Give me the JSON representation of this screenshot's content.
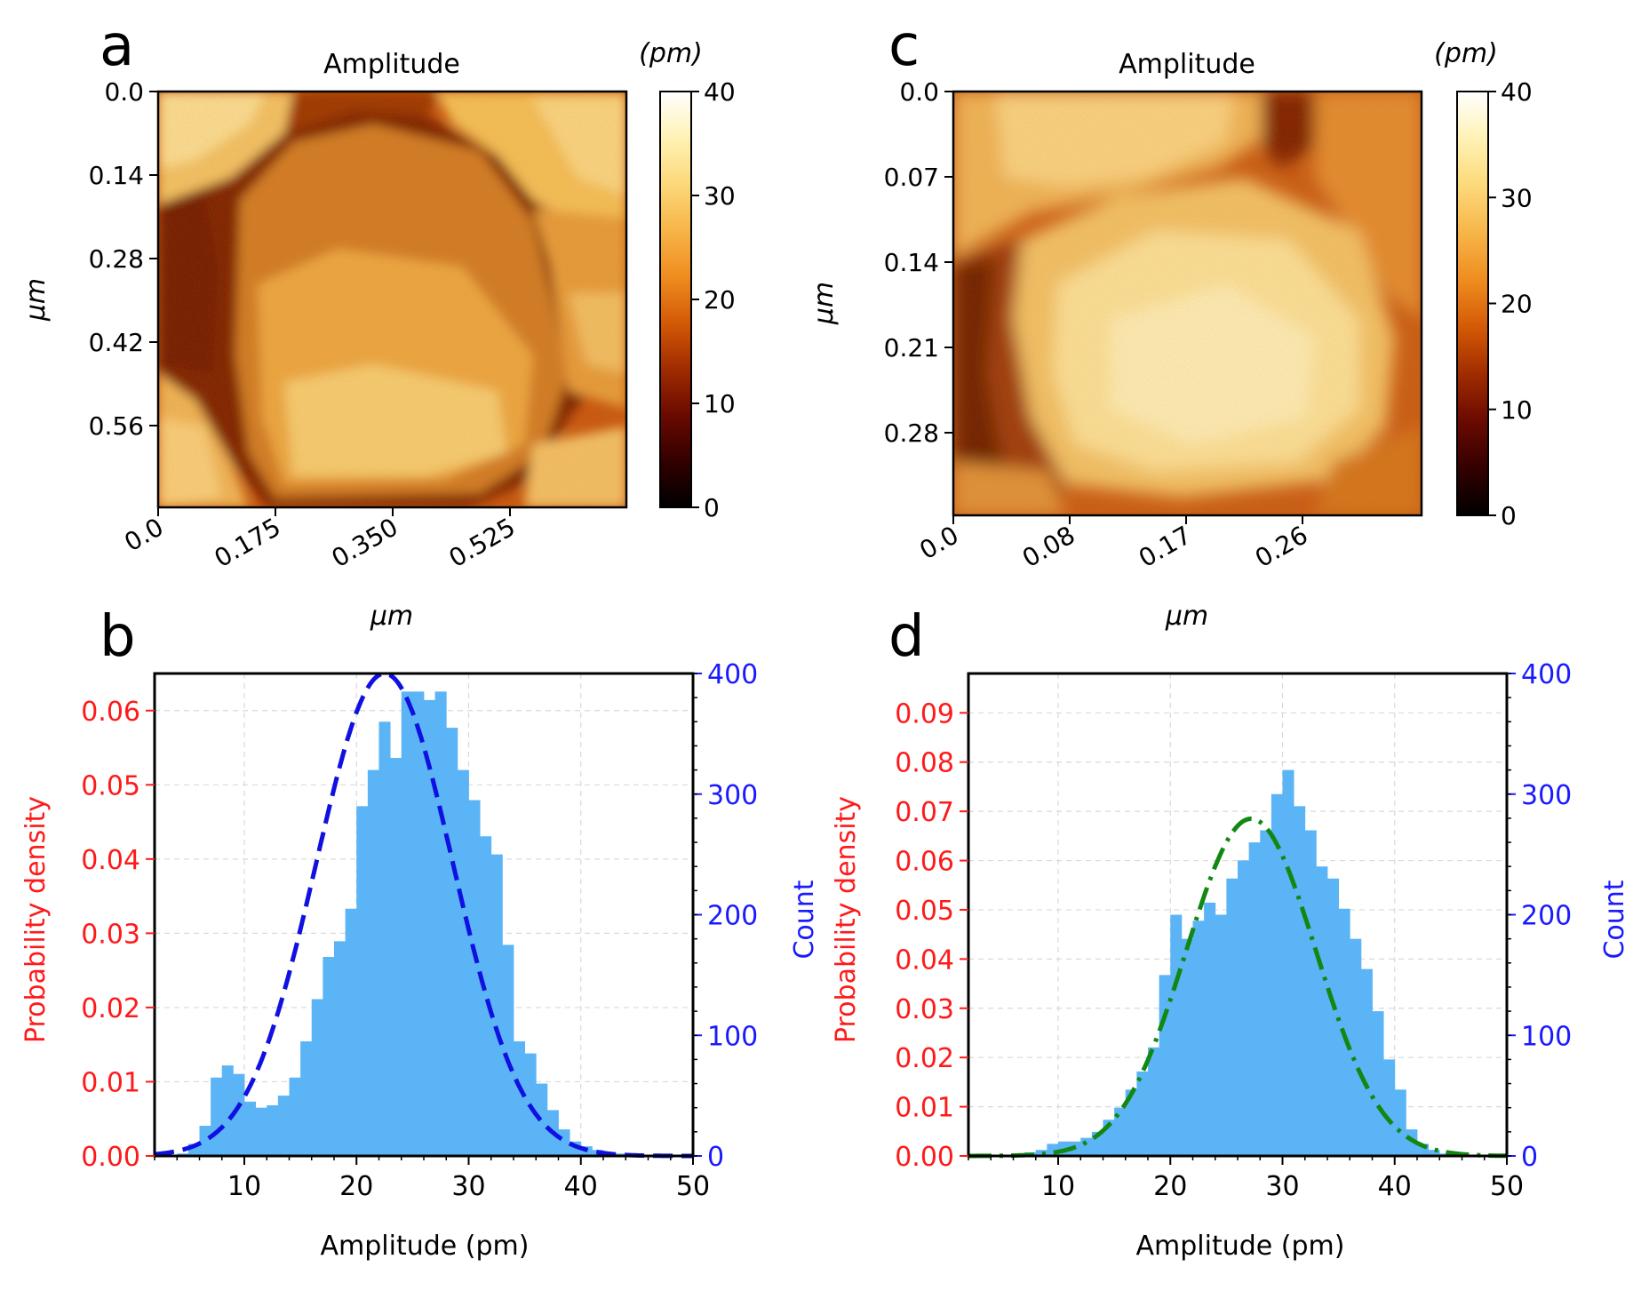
{
  "colors": {
    "hist_fill": "#5bb4f5",
    "fit_b": "#1010e0",
    "fit_d": "#118811",
    "left_axis": "#ff1a1a",
    "right_axis": "#1a1aff",
    "grid": "#d9d9d9",
    "colormap": [
      "#000000",
      "#330000",
      "#6a0a00",
      "#a02c00",
      "#d45a06",
      "#ef8d1f",
      "#f7b548",
      "#fcd97a",
      "#fff2b5",
      "#ffffff"
    ]
  },
  "chart_data": [
    {
      "type": "heatmap",
      "panel_label": "a",
      "title": "Amplitude",
      "xlabel": "μm",
      "ylabel": "μm",
      "x_ticks": [
        "0.0",
        "0.175",
        "0.350",
        "0.525"
      ],
      "y_ticks": [
        "0.0",
        "0.14",
        "0.28",
        "0.42",
        "0.56"
      ],
      "colorbar": {
        "unit": "(pm)",
        "range": [
          0,
          40
        ],
        "ticks": [
          "0",
          "10",
          "20",
          "30",
          "40"
        ]
      }
    },
    {
      "type": "heatmap",
      "panel_label": "c",
      "title": "Amplitude",
      "xlabel": "μm",
      "ylabel": "μm",
      "x_ticks": [
        "0.0",
        "0.08",
        "0.17",
        "0.26"
      ],
      "y_ticks": [
        "0.0",
        "0.07",
        "0.14",
        "0.21",
        "0.28"
      ],
      "colorbar": {
        "unit": "(pm)",
        "range": [
          0,
          40
        ],
        "ticks": [
          "0",
          "10",
          "20",
          "30",
          "40"
        ]
      }
    },
    {
      "type": "bar",
      "panel_label": "b",
      "xlabel": "Amplitude (pm)",
      "ylabel_left": "Probability density",
      "ylabel_right": "Count",
      "xlim": [
        2,
        50
      ],
      "ylim_left": [
        0,
        0.065
      ],
      "ylim_right": [
        0,
        400
      ],
      "x_ticks": [
        "10",
        "20",
        "30",
        "40",
        "50"
      ],
      "y_ticks_left": [
        "0.00",
        "0.01",
        "0.02",
        "0.03",
        "0.04",
        "0.05",
        "0.06"
      ],
      "y_ticks_right": [
        "0",
        "100",
        "200",
        "300",
        "400"
      ],
      "bin_start": 2,
      "bin_width": 1,
      "counts": [
        0,
        0,
        2,
        10,
        25,
        65,
        75,
        68,
        45,
        40,
        42,
        50,
        65,
        95,
        130,
        165,
        178,
        205,
        290,
        320,
        360,
        330,
        385,
        385,
        378,
        385,
        355,
        320,
        295,
        265,
        250,
        175,
        95,
        85,
        60,
        38,
        22,
        12,
        8,
        5,
        3,
        2,
        1,
        1,
        0,
        0,
        0,
        0
      ],
      "fit": {
        "style": "dashed",
        "mean": 22.5,
        "sigma": 6.1,
        "peak_density": 0.065
      }
    },
    {
      "type": "bar",
      "panel_label": "d",
      "xlabel": "Amplitude (pm)",
      "ylabel_left": "Probability density",
      "ylabel_right": "Count",
      "xlim": [
        2,
        50
      ],
      "ylim_left": [
        0,
        0.098
      ],
      "ylim_right": [
        0,
        400
      ],
      "x_ticks": [
        "10",
        "20",
        "30",
        "40",
        "50"
      ],
      "y_ticks_left": [
        "0.00",
        "0.01",
        "0.02",
        "0.03",
        "0.04",
        "0.05",
        "0.06",
        "0.07",
        "0.08",
        "0.09"
      ],
      "y_ticks_right": [
        "0",
        "100",
        "200",
        "300",
        "400"
      ],
      "bin_start": 2,
      "bin_width": 1,
      "counts": [
        0,
        0,
        0,
        0,
        0,
        3,
        5,
        10,
        12,
        12,
        15,
        20,
        30,
        40,
        55,
        70,
        90,
        150,
        200,
        180,
        195,
        210,
        200,
        230,
        245,
        260,
        270,
        300,
        320,
        290,
        270,
        240,
        230,
        205,
        180,
        155,
        120,
        80,
        55,
        22,
        10,
        5,
        2,
        0,
        0,
        0,
        0,
        0
      ],
      "fit": {
        "style": "dashdot",
        "mean": 27.2,
        "sigma": 5.8,
        "peak_density": 0.0685
      }
    }
  ]
}
